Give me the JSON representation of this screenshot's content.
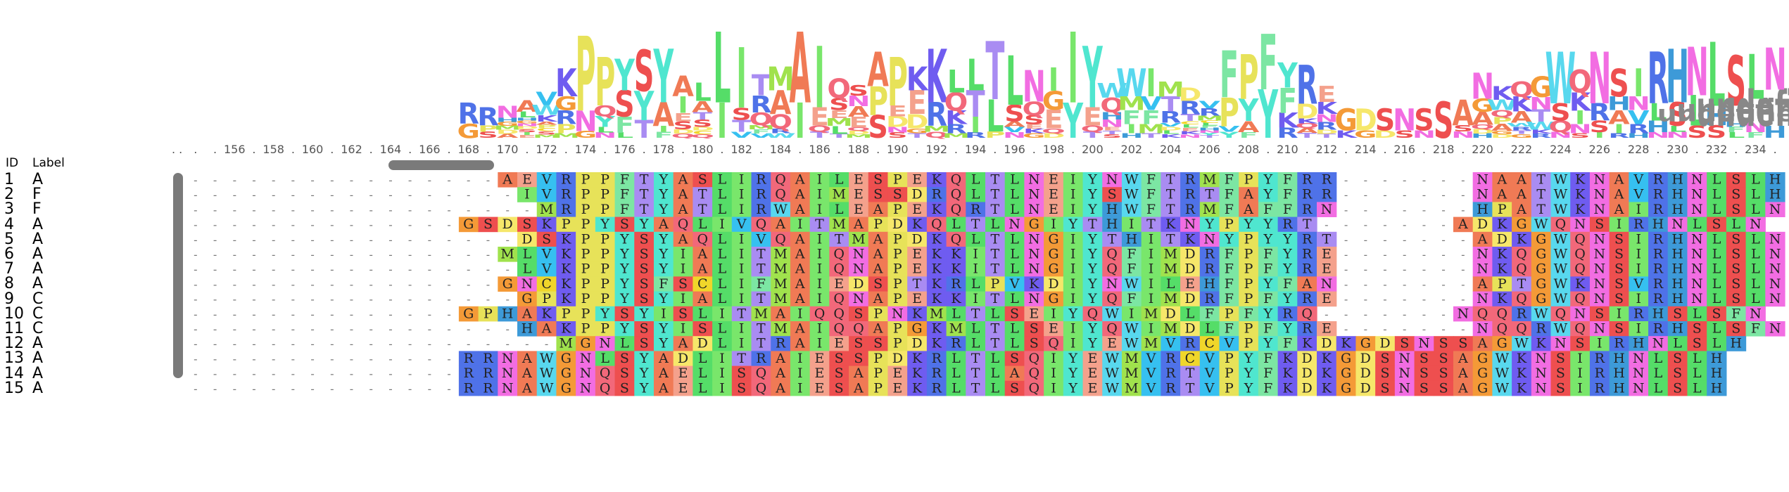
{
  "header": {
    "id_label": "ID",
    "label_label": "Label"
  },
  "ruler": {
    "start": 154,
    "end": 230,
    "prefix": ". ."
  },
  "sequences": [
    {
      "id": "1",
      "label": "A",
      "seq": "----------------AEVRPPFTYASLIRQAILESPEKQLTLNEIYNWFTRMFPYFRR-------NAATWKNAVRHNLSLH"
    },
    {
      "id": "2",
      "label": "F",
      "seq": "-----------------IVRPPFTYATLIRQAIMESSDRQLTLNEIYSWFTRTFAYFRR-------NAATWKNAVRHNLSLH"
    },
    {
      "id": "3",
      "label": "F",
      "seq": "------------------MRPPFTYATLIRWAILEAPEKQRTLNEIYHWFTRMFAFFRN-------HPATWKNAIRHNLSLN"
    },
    {
      "id": "4",
      "label": "A",
      "seq": "--------------GSDSKPPYSYAQLIVQAITMAPDKQLTLNGIYTHITKNYPYYRT-------ADKGWQNSIRHNLSLN"
    },
    {
      "id": "5",
      "label": "A",
      "seq": "-----------------DSKPPYSYAQLIVQAITMAPDKQLTLNGIYTHITKNYPYYRT-------ADKGWQNSIRHNLSLN"
    },
    {
      "id": "6",
      "label": "A",
      "seq": "----------------MLVKPPYSYIALITMAIQNAPEKKITLNGIYQFIMDRFPFYRE-------NKQGWQNSIRHNLSLN"
    },
    {
      "id": "7",
      "label": "A",
      "seq": "-----------------LVKPPYSYIALITMAIQNAPEKKITLNGIYQFIMDRFPFYRE-------NKQGWQNSIRHNLSLN"
    },
    {
      "id": "8",
      "label": "A",
      "seq": "----------------GNCKPPYSFSCLIFMAIEDSPTKRLPVKDIYNWILEHFPYFAN-------APTGWKNSVRHNLSLN"
    },
    {
      "id": "9",
      "label": "C",
      "seq": "-----------------GPKPPYSYIALITMAIQNAPEKKITLNGIYQFIMDRFPFYRE-------NKQGWQNSIRHNLSLN"
    },
    {
      "id": "10",
      "label": "C",
      "seq": "--------------GPHAKPPYSYISLITMAIQQSPNKMLTLSEIYQWIMDLFPFYRQ-------NQQRWQNSIRHSLSFN"
    },
    {
      "id": "11",
      "label": "C",
      "seq": "-----------------HAKPPYSYISLITMAIQQAPGKMLTLSEIYQWIMDLFPFYRE-------NQQRWQNSIRHSLSFN"
    },
    {
      "id": "12",
      "label": "A",
      "seq": "-------------------MGNLSYADLITRAIESSPDKRLTLSQIYEWMVRCVPYFKDKGDSNSSAGWKNSIRHNLSLH"
    },
    {
      "id": "13",
      "label": "A",
      "seq": "--------------RRNAWGNLSYADLITRAIESSPDKRLTLSQIYEWMVRCVPYFKDKGDSNSSAGWKNSIRHNLSLH"
    },
    {
      "id": "14",
      "label": "A",
      "seq": "--------------RRNAWGNQSYAELISQAIESAPEKRLTLAQIYEWMVRTVPYFKDKGDSNSSAGWKNSIRHNLSLH"
    },
    {
      "id": "15",
      "label": "A",
      "seq": "--------------RRNAWGNQSYAELISQAIESAPEKRLTLSQIYEWMVRTVPYFKDKGDSNSSAGWKNSIRHNLSLH"
    }
  ],
  "logo_consensus": "GGGDAKTFKRSGSDSKPPYSYIALITMAIESSPEKRLTLNQIYEWIMDRVPYFRKDKGDSNSSAGWKNSIRHNLSLH",
  "colors": {
    "A": "#f07a55",
    "R": "#4f72e8",
    "N": "#f26de2",
    "D": "#f6e76a",
    "C": "#f0d62a",
    "Q": "#f2687a",
    "E": "#f4a18c",
    "G": "#f49a37",
    "H": "#3d9ad8",
    "I": "#79e66b",
    "L": "#55dd68",
    "K": "#6f5cf0",
    "M": "#a0e24d",
    "F": "#7ce6a3",
    "P": "#e7e259",
    "S": "#ee4f4f",
    "T": "#a98cf2",
    "W": "#58d8ee",
    "Y": "#4fe6cf",
    "V": "#36c0f0"
  }
}
